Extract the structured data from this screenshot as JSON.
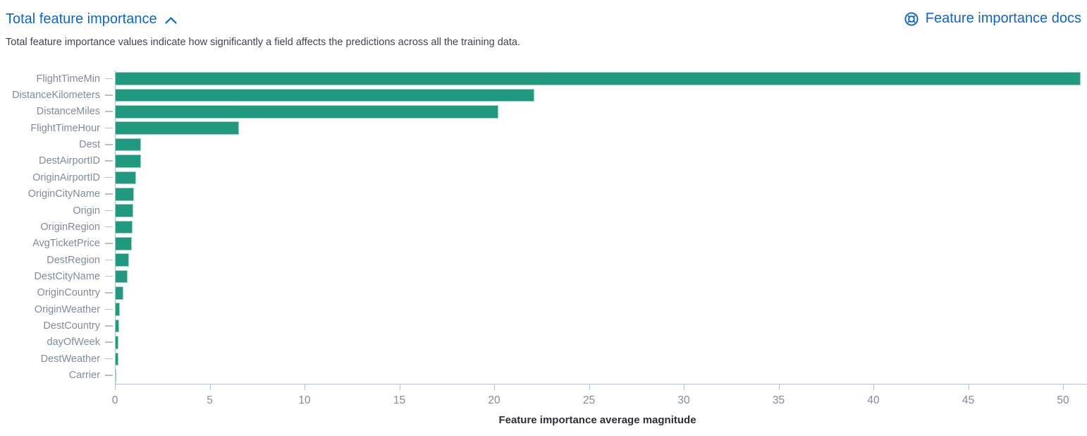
{
  "header": {
    "title": "Total feature importance",
    "collapse_icon": "chevron-up",
    "docs_link_label": "Feature importance docs",
    "docs_icon": "documentation-life-ring"
  },
  "description": "Total feature importance values indicate how significantly a field affects the predictions across all the training data.",
  "colors": {
    "link_blue": "#0d65d0",
    "bar_teal": "#21997e",
    "axis_gray": "#b6bdcc",
    "label_gray": "#818a9e",
    "text_dark": "#3f4454",
    "axis_title": "#2b2f36"
  },
  "chart_data": {
    "type": "bar",
    "orientation": "horizontal",
    "title": "",
    "xlabel": "Feature importance average magnitude",
    "ylabel": "",
    "categories": [
      "FlightTimeMin",
      "DistanceKilometers",
      "DistanceMiles",
      "FlightTimeHour",
      "Dest",
      "DestAirportID",
      "OriginAirportID",
      "OriginCityName",
      "Origin",
      "OriginRegion",
      "AvgTicketPrice",
      "DestRegion",
      "DestCityName",
      "OriginCountry",
      "OriginWeather",
      "DestCountry",
      "dayOfWeek",
      "DestWeather",
      "Carrier"
    ],
    "values": [
      50.9,
      22.1,
      20.2,
      6.5,
      1.35,
      1.32,
      1.07,
      0.96,
      0.93,
      0.89,
      0.85,
      0.72,
      0.62,
      0.42,
      0.22,
      0.19,
      0.16,
      0.14,
      0.05
    ],
    "x_ticks": [
      0,
      5,
      10,
      15,
      20,
      25,
      30,
      35,
      40,
      45,
      50
    ],
    "xlim": [
      0,
      51
    ],
    "grid": false,
    "legend": false
  }
}
